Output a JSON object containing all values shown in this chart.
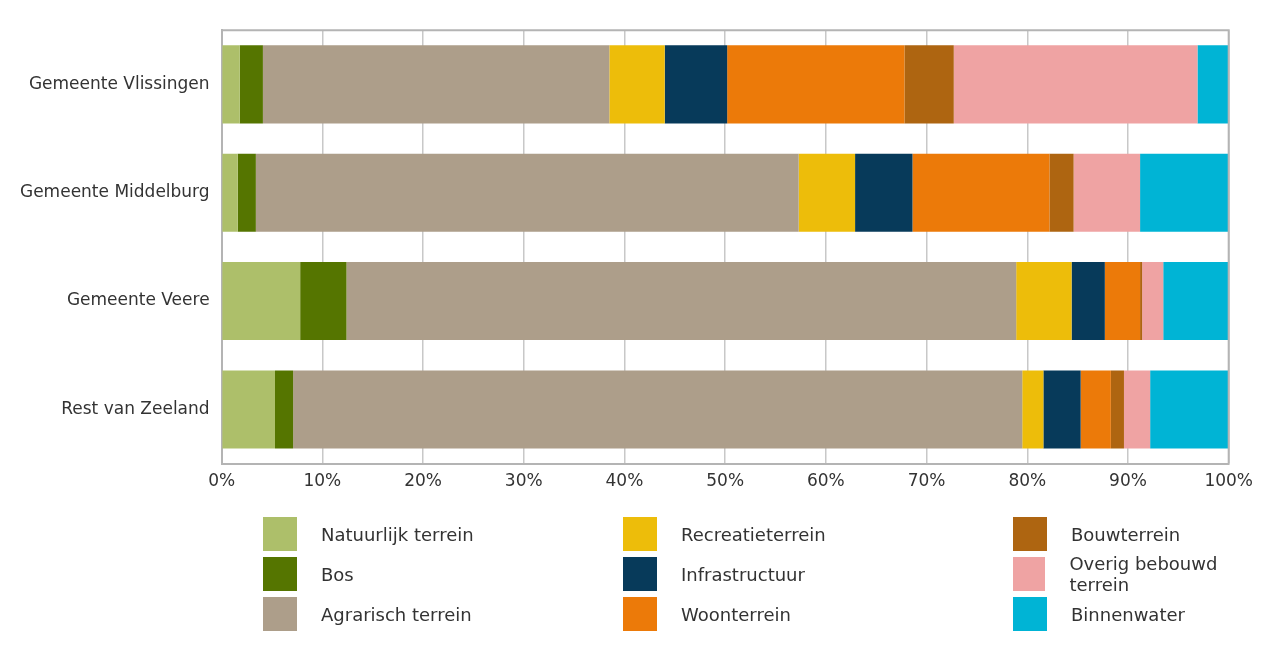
{
  "chart_data": {
    "type": "bar",
    "orientation": "horizontal",
    "stacked": true,
    "grid": "x",
    "legend": "bottom",
    "categories": [
      "Gemeente Vlissingen",
      "Gemeente Middelburg",
      "Gemeente Veere",
      "Rest van Zeeland"
    ],
    "xlim": [
      0,
      100
    ],
    "xticks": [
      {
        "value": 0,
        "label": "0%"
      },
      {
        "value": 10,
        "label": "10%"
      },
      {
        "value": 20,
        "label": "20%"
      },
      {
        "value": 30,
        "label": "30%"
      },
      {
        "value": 40,
        "label": "40%"
      },
      {
        "value": 50,
        "label": "50%"
      },
      {
        "value": 60,
        "label": "60%"
      },
      {
        "value": 70,
        "label": "70%"
      },
      {
        "value": 80,
        "label": "80%"
      },
      {
        "value": 90,
        "label": "90%"
      },
      {
        "value": 100,
        "label": "100%"
      }
    ],
    "series": [
      {
        "name": "Natuurlijk terrein",
        "color": "#adbf6a",
        "values": [
          1.8,
          1.6,
          7.8,
          5.3
        ]
      },
      {
        "name": "Bos",
        "color": "#557500",
        "values": [
          2.3,
          1.8,
          4.6,
          1.8
        ]
      },
      {
        "name": "Agrarisch terrein",
        "color": "#ad9e8a",
        "values": [
          34.4,
          53.9,
          66.5,
          72.4
        ]
      },
      {
        "name": "Recreatieterrein",
        "color": "#edbd0a",
        "values": [
          5.5,
          5.6,
          5.5,
          2.1
        ]
      },
      {
        "name": "Infrastructuur",
        "color": "#073a5a",
        "values": [
          6.2,
          5.7,
          3.3,
          3.7
        ]
      },
      {
        "name": "Woonterrein",
        "color": "#ec7a09",
        "values": [
          17.6,
          13.6,
          3.5,
          3.0
        ]
      },
      {
        "name": "Bouwterrein",
        "color": "#ae6511",
        "values": [
          4.9,
          2.4,
          0.2,
          1.3
        ]
      },
      {
        "name": "Overig bebouwd terrein",
        "color": "#efa3a3",
        "values": [
          24.2,
          6.6,
          2.1,
          2.6
        ]
      },
      {
        "name": "Binnenwater",
        "color": "#00b4d5",
        "values": [
          3.1,
          8.8,
          6.5,
          7.8
        ]
      }
    ]
  }
}
